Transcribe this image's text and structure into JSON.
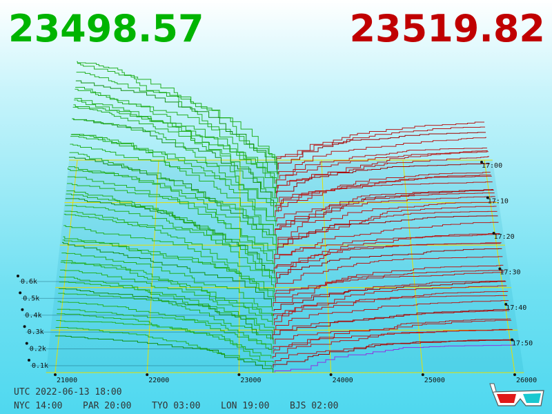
{
  "bid_price": "23498.57",
  "ask_price": "23519.82",
  "price_axis": [
    "21000",
    "22000",
    "23000",
    "24000",
    "25000",
    "26000"
  ],
  "depth_axis": [
    "0.1k",
    "0.2k",
    "0.3k",
    "0.4k",
    "0.5k",
    "0.6k"
  ],
  "time_axis": [
    "17:00",
    "17:10",
    "17:20",
    "17:30",
    "17:40",
    "17:50"
  ],
  "clock": {
    "utc": "UTC 2022-06-13 18:00",
    "cities": [
      "NYC 14:00",
      "PAR 20:00",
      "TYO 03:00",
      "LON 19:00",
      "BJS 02:00"
    ]
  }
}
